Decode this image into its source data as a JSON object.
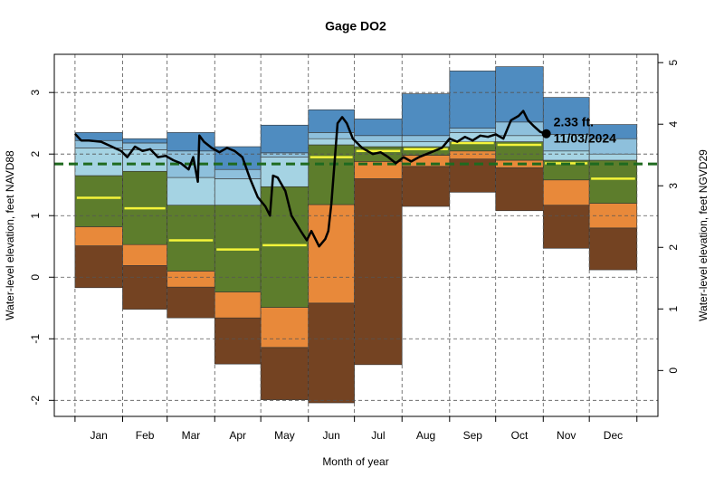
{
  "chart_data": {
    "type": "percentile-band",
    "title": "Gage DO2",
    "x_label": "Month of year",
    "y_label": "Water-level elevation, feet NAVD88",
    "y2_label": "Water-level elevation, feet NGVD29",
    "categories": [
      "Jan",
      "Feb",
      "Mar",
      "Apr",
      "May",
      "Jun",
      "Jul",
      "Aug",
      "Sep",
      "Oct",
      "Nov",
      "Dec"
    ],
    "xlim": [
      -12.5,
      380.7
    ],
    "xticks": [
      1,
      32,
      61,
      92,
      122,
      153,
      183,
      214,
      245,
      275,
      306,
      336,
      367
    ],
    "ylim": [
      -2.26,
      3.62
    ],
    "yticks": [
      -2,
      -1,
      0,
      1,
      2,
      3
    ],
    "y2lim": [
      -0.745,
      5.135
    ],
    "y2ticks": [
      0,
      1,
      2,
      3,
      4,
      5
    ],
    "grid": true,
    "band_colors": [
      "#744322",
      "#e8893a",
      "#5d7d2c",
      "#a5d3e3",
      "#8ec0dc",
      "#4f8cc0"
    ],
    "band_edges": [
      [
        -0.17,
        -0.52,
        -0.66,
        -1.41,
        -1.99,
        -2.04,
        -1.42,
        1.15,
        1.38,
        1.08,
        0.47,
        0.12
      ],
      [
        0.51,
        0.19,
        -0.16,
        -0.66,
        -1.14,
        -0.42,
        1.6,
        1.8,
        1.92,
        1.78,
        1.17,
        0.8
      ],
      [
        0.82,
        0.53,
        0.1,
        -0.24,
        -0.49,
        1.18,
        1.88,
        1.98,
        2.05,
        1.9,
        1.58,
        1.2
      ],
      [
        1.65,
        1.72,
        1.17,
        1.17,
        1.47,
        2.15,
        2.12,
        2.12,
        2.2,
        2.2,
        1.9,
        1.9
      ],
      [
        2.1,
        2.07,
        1.62,
        1.6,
        1.95,
        2.25,
        2.2,
        2.2,
        2.35,
        2.3,
        2.05,
        2.0
      ],
      [
        2.22,
        2.18,
        2.05,
        1.75,
        2.02,
        2.35,
        2.3,
        2.3,
        2.42,
        2.52,
        2.32,
        2.25
      ],
      [
        2.35,
        2.25,
        2.35,
        2.12,
        2.47,
        2.72,
        2.57,
        2.98,
        3.35,
        3.42,
        2.92,
        2.48
      ]
    ],
    "median": [
      1.29,
      1.12,
      0.6,
      0.45,
      0.52,
      1.95,
      2.05,
      2.08,
      2.18,
      2.15,
      1.85,
      1.6
    ],
    "median_color": "#f4f43a",
    "reference_level": 1.84,
    "reference_color": "#1f6a1f",
    "line": {
      "color": "#000000",
      "x": [
        1,
        5,
        10,
        18,
        25,
        31,
        35,
        40,
        45,
        50,
        55,
        60,
        65,
        70,
        75,
        78,
        81,
        82,
        85,
        90,
        95,
        100,
        105,
        110,
        115,
        120,
        125,
        128,
        130,
        133,
        138,
        142,
        148,
        152,
        155,
        160,
        164,
        166,
        168,
        172,
        175,
        178,
        182,
        188,
        195,
        200,
        205,
        210,
        215,
        220,
        225,
        230,
        235,
        240,
        245,
        250,
        255,
        260,
        265,
        270,
        275,
        280,
        285,
        290,
        293,
        296,
        300,
        304,
        308
      ],
      "values": [
        2.33,
        2.22,
        2.22,
        2.2,
        2.12,
        2.05,
        1.95,
        2.12,
        2.05,
        2.08,
        1.95,
        1.97,
        1.9,
        1.85,
        1.75,
        1.95,
        1.55,
        2.3,
        2.2,
        2.1,
        2.03,
        2.1,
        2.05,
        1.95,
        1.6,
        1.3,
        1.15,
        1.0,
        1.65,
        1.62,
        1.4,
        1.0,
        0.75,
        0.6,
        0.75,
        0.5,
        0.62,
        0.75,
        1.2,
        2.5,
        2.6,
        2.5,
        2.25,
        2.1,
        2.0,
        2.03,
        1.95,
        1.85,
        1.95,
        1.88,
        1.95,
        2.0,
        2.05,
        2.1,
        2.25,
        2.2,
        2.28,
        2.22,
        2.3,
        2.28,
        2.32,
        2.25,
        2.55,
        2.62,
        2.7,
        2.55,
        2.45,
        2.36,
        2.33
      ]
    },
    "annotation": {
      "x": 308,
      "value": 2.33,
      "text": "2.33 ft.",
      "date": "11/03/2024"
    }
  }
}
